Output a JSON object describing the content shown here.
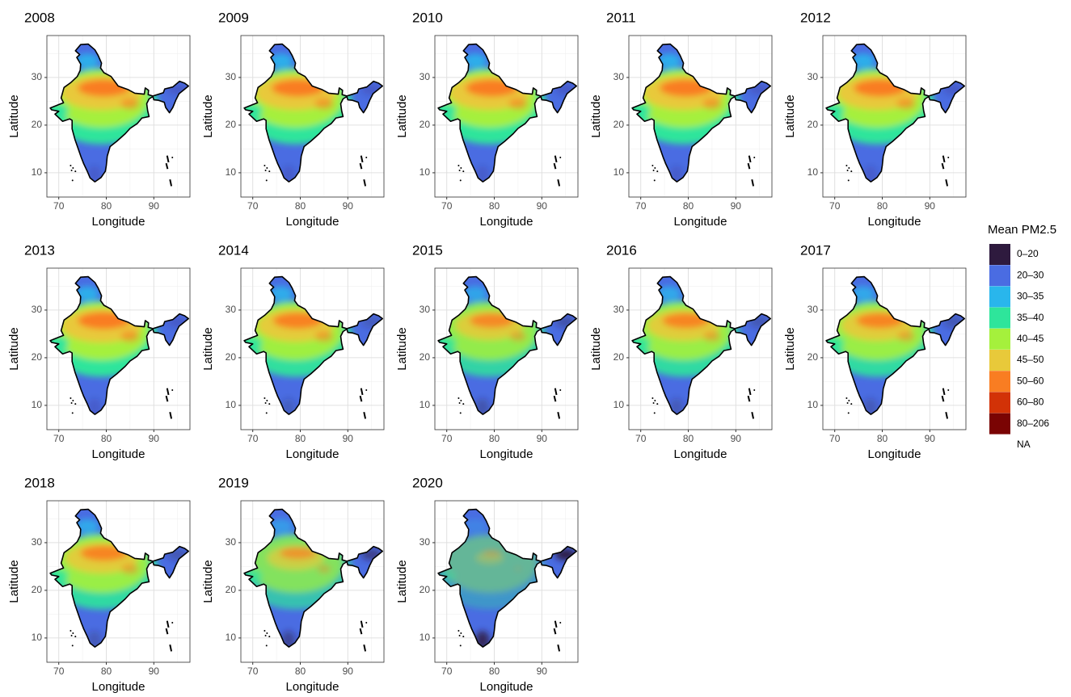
{
  "panels": [
    {
      "title": "2008"
    },
    {
      "title": "2009"
    },
    {
      "title": "2010"
    },
    {
      "title": "2011"
    },
    {
      "title": "2012"
    },
    {
      "title": "2013"
    },
    {
      "title": "2014"
    },
    {
      "title": "2015"
    },
    {
      "title": "2016"
    },
    {
      "title": "2017"
    },
    {
      "title": "2018"
    },
    {
      "title": "2019"
    },
    {
      "title": "2020"
    }
  ],
  "x_label": "Longitude",
  "y_label": "Latitude",
  "xlim": [
    67.5,
    97.6
  ],
  "ylim": [
    4.9,
    38.8
  ],
  "xticks": [
    70,
    80,
    90
  ],
  "yticks": [
    10,
    20,
    30
  ],
  "grid": true,
  "legend": {
    "title": "Mean PM2.5",
    "items": [
      {
        "label": "0–20",
        "color": "#2e1a3e"
      },
      {
        "label": "20–30",
        "color": "#4a6ce2"
      },
      {
        "label": "30–35",
        "color": "#29b6ec"
      },
      {
        "label": "35–40",
        "color": "#2ee59b"
      },
      {
        "label": "40–45",
        "color": "#a5f03c"
      },
      {
        "label": "45–50",
        "color": "#e8c93a"
      },
      {
        "label": "50–60",
        "color": "#f97d22"
      },
      {
        "label": "60–80",
        "color": "#d23207"
      },
      {
        "label": "80–206",
        "color": "#7a0403"
      },
      {
        "label": "NA"
      }
    ]
  }
}
